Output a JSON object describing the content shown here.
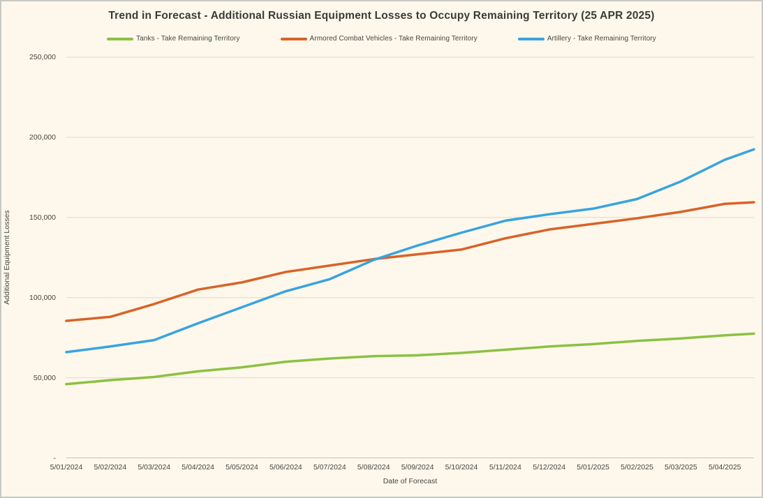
{
  "colors": {
    "background": "#fdf8eb",
    "border": "#c9c8c2",
    "gridline": "#dbdad1",
    "axis_line": "#c2c1b9",
    "text": "#454440",
    "title_text": "#3b3a36",
    "tanks_green": "#8cc043",
    "acv_orange": "#d96228",
    "artillery_blue": "#38a3e0"
  },
  "chart_data": {
    "type": "line",
    "title": "Trend in Forecast - Additional Russian Equipment Losses to Occupy Remaining Territory (25 APR 2025)",
    "xlabel": "Date of Forecast",
    "ylabel": "Additional Equipment Losses",
    "legend_position": "top",
    "grid": "horizontal-only",
    "ylim": [
      0,
      250000
    ],
    "y_tick_labels": [
      "-",
      "50,000",
      "100,000",
      "150,000",
      "200,000",
      "250,000"
    ],
    "x_tick_labels": [
      "5/01/2024",
      "5/02/2024",
      "5/03/2024",
      "5/04/2024",
      "5/05/2024",
      "5/06/2024",
      "5/07/2024",
      "5/08/2024",
      "5/09/2024",
      "5/10/2024",
      "5/11/2024",
      "5/12/2024",
      "5/01/2025",
      "5/02/2025",
      "5/03/2025",
      "5/04/2025"
    ],
    "x_note": "17th data point of each series extends past the last tick to the forecast date in the title (25 APR 2025)",
    "series": [
      {
        "name": "Tanks - Take Remaining Territory",
        "color": "#8cc043",
        "values": [
          46000,
          48500,
          50500,
          54000,
          56500,
          60000,
          62000,
          63500,
          64000,
          65500,
          67500,
          69500,
          71000,
          73000,
          74500,
          76500,
          77500
        ]
      },
      {
        "name": "Armored Combat Vehicles - Take Remaining Territory",
        "color": "#d96228",
        "values": [
          85500,
          88000,
          96000,
          105000,
          109500,
          116000,
          120000,
          124000,
          127000,
          130000,
          137000,
          142500,
          146000,
          149500,
          153500,
          158500,
          159500
        ]
      },
      {
        "name": "Artillery - Take Remaining Territory",
        "color": "#38a3e0",
        "values": [
          66000,
          69500,
          73500,
          84000,
          94000,
          104000,
          111500,
          123500,
          132500,
          140500,
          148000,
          152000,
          155500,
          161500,
          172500,
          186000,
          192500
        ]
      }
    ]
  }
}
